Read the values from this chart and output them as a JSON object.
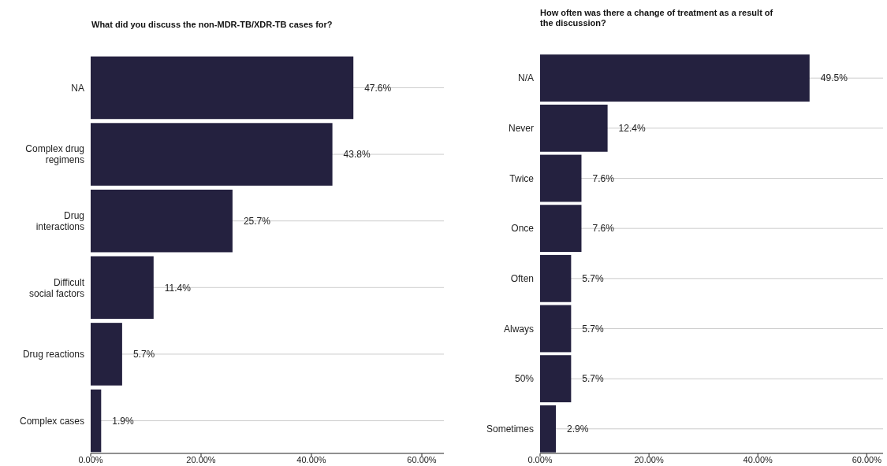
{
  "chart_data": [
    {
      "type": "bar",
      "orientation": "horizontal",
      "title": "What did you discuss the non-MDR-TB/XDR-TB cases for?",
      "categories": [
        "NA",
        "Complex drug regimens",
        "Drug interactions",
        "Difficult social factors",
        "Drug reactions",
        "Complex cases"
      ],
      "values": [
        47.6,
        43.8,
        25.7,
        11.4,
        5.7,
        1.9
      ],
      "value_labels": [
        "47.6%",
        "43.8%",
        "25.7%",
        "11.4%",
        "5.7%",
        "1.9%"
      ],
      "color": "#24213f",
      "xlim": [
        0,
        64
      ],
      "xticks": [
        {
          "value": 0,
          "label": "0.00%"
        },
        {
          "value": 20,
          "label": "20.00%"
        },
        {
          "value": 40,
          "label": "40.00%"
        },
        {
          "value": 60,
          "label": "60.00%"
        }
      ],
      "grid": "y"
    },
    {
      "type": "bar",
      "orientation": "horizontal",
      "title": "How often was there a change of treatment as a result of the discussion?",
      "categories": [
        "N/A",
        "Never",
        "Twice",
        "Once",
        "Often",
        "Always",
        "50%",
        "Sometimes"
      ],
      "values": [
        49.5,
        12.4,
        7.6,
        7.6,
        5.7,
        5.7,
        5.7,
        2.9
      ],
      "value_labels": [
        "49.5%",
        "12.4%",
        "7.6%",
        "7.6%",
        "5.7%",
        "5.7%",
        "5.7%",
        "2.9%"
      ],
      "color": "#24213f",
      "xlim": [
        0,
        63
      ],
      "xticks": [
        {
          "value": 0,
          "label": "0.00%"
        },
        {
          "value": 20,
          "label": "20.00%"
        },
        {
          "value": 40,
          "label": "40.00%"
        },
        {
          "value": 60,
          "label": "60.00%"
        }
      ],
      "grid": "y"
    }
  ]
}
